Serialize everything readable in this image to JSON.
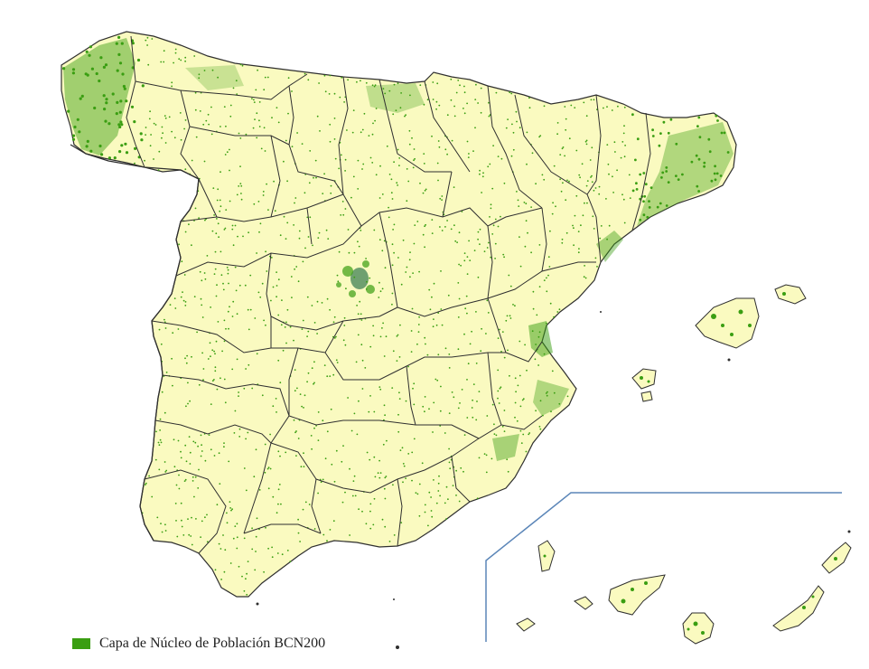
{
  "legend": {
    "label": "Capa de Núcleo de Población BCN200",
    "swatch_color": "#3a9e12"
  },
  "colors": {
    "land": "#fafac0",
    "boundary": "#2f2f2f",
    "settlement": "#3a9e12",
    "madrid_core": "#6fa070",
    "inset_frame": "#5b86b8",
    "background": "#ffffff"
  }
}
